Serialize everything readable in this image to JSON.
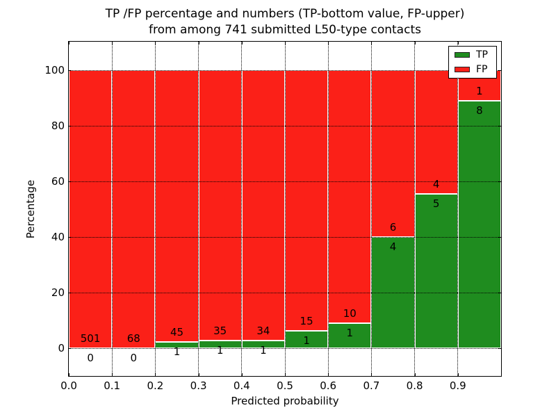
{
  "figure": {
    "title_line1": "TP /FP percentage and numbers (TP-bottom value, FP-upper)",
    "title_line2": "from among 741 submitted L50-type contacts",
    "xlabel": "Predicted probability",
    "ylabel": "Percentage"
  },
  "legend": {
    "items": [
      {
        "label": "TP",
        "color": "#1f8c1f"
      },
      {
        "label": "FP",
        "color": "#fb2018"
      }
    ]
  },
  "chart_data": {
    "type": "bar",
    "stacked": true,
    "normalized_to_percent": 100,
    "title": "TP /FP percentage and numbers (TP-bottom value, FP-upper)\nfrom among 741 submitted L50-type contacts",
    "xlabel": "Predicted probability",
    "ylabel": "Percentage",
    "total_contacts": 741,
    "bin_width": 0.1,
    "bins": [
      {
        "x_start": 0.0,
        "tp": 0,
        "fp": 501,
        "tp_pct": 0.0
      },
      {
        "x_start": 0.1,
        "tp": 0,
        "fp": 68,
        "tp_pct": 0.0
      },
      {
        "x_start": 0.2,
        "tp": 1,
        "fp": 45,
        "tp_pct": 2.17
      },
      {
        "x_start": 0.3,
        "tp": 1,
        "fp": 35,
        "tp_pct": 2.78
      },
      {
        "x_start": 0.4,
        "tp": 1,
        "fp": 34,
        "tp_pct": 2.86
      },
      {
        "x_start": 0.5,
        "tp": 1,
        "fp": 15,
        "tp_pct": 6.25
      },
      {
        "x_start": 0.6,
        "tp": 1,
        "fp": 10,
        "tp_pct": 9.09
      },
      {
        "x_start": 0.7,
        "tp": 4,
        "fp": 6,
        "tp_pct": 40.0
      },
      {
        "x_start": 0.8,
        "tp": 5,
        "fp": 4,
        "tp_pct": 55.56
      },
      {
        "x_start": 0.9,
        "tp": 8,
        "fp": 1,
        "tp_pct": 88.89
      }
    ],
    "xticks": [
      "0.0",
      "0.1",
      "0.2",
      "0.3",
      "0.4",
      "0.5",
      "0.6",
      "0.7",
      "0.8",
      "0.9"
    ],
    "yticks": [
      0,
      20,
      40,
      60,
      80,
      100
    ],
    "xlim": [
      0.0,
      1.0
    ],
    "ylim": [
      -10,
      110
    ],
    "grid": "dotted",
    "legend_position": "upper right",
    "colors": {
      "tp": "#1f8c1f",
      "fp": "#fb2018"
    }
  }
}
